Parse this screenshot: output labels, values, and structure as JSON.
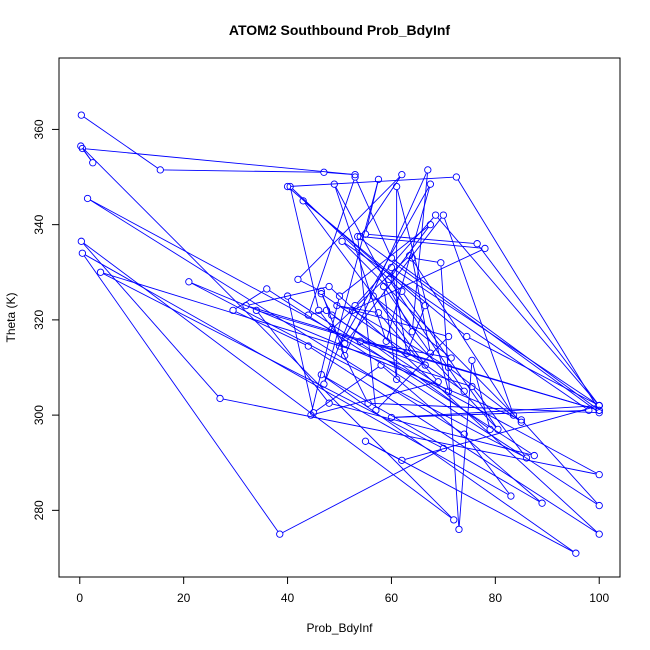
{
  "chart_data": {
    "type": "line",
    "title": "ATOM2 Southbound Prob_BdyInf",
    "xlabel": "Prob_BdyInf",
    "ylabel": "Theta (K)",
    "xlim": [
      -4,
      104
    ],
    "ylim": [
      266,
      375
    ],
    "xticks": [
      0,
      20,
      40,
      60,
      80,
      100
    ],
    "yticks": [
      280,
      300,
      320,
      340,
      360
    ],
    "grid": false,
    "legend": "none",
    "series_color": "#0000ff",
    "x": [
      0.3,
      15.5,
      47.0,
      53.0,
      0.5,
      2.5,
      0.2,
      72.0,
      0.3,
      27.0,
      100.0,
      1.5,
      74.0,
      83.0,
      0.5,
      38.5,
      70.0,
      4.0,
      75.5,
      86.0,
      21.0,
      85.0,
      100.0,
      36.0,
      29.5,
      44.0,
      100.0,
      48.0,
      32.0,
      100.0,
      34.0,
      48.0,
      87.5,
      40.0,
      45.0,
      58.0,
      89.0,
      46.5,
      95.5,
      55.0,
      62.0,
      100.0,
      60.0,
      98.0,
      50.5,
      85.0,
      71.0,
      52.5,
      78.0,
      54.0,
      62.0,
      42.0,
      46.5,
      51.0,
      67.0,
      64.0,
      49.0,
      59.0,
      67.5,
      50.0,
      55.5,
      100.0,
      53.5,
      57.0,
      71.0,
      49.5,
      57.5,
      69.0,
      44.5,
      50.0,
      67.5,
      59.5,
      74.0,
      46.5,
      48.5,
      71.0,
      61.0,
      61.0,
      58.5,
      67.5,
      64.0,
      69.5,
      73.0,
      75.5,
      79.0,
      47.5,
      44.0,
      53.0,
      60.0,
      100.0,
      72.5,
      40.0,
      66.5,
      63.0,
      60.0,
      100.0,
      76.5,
      55.0,
      57.5,
      47.0,
      53.0,
      68.5,
      100.0,
      74.5,
      43.0,
      66.5,
      54.0,
      71.5,
      56.5,
      80.5,
      62.0,
      40.5,
      46.0,
      51.0,
      70.0,
      83.5,
      63.5,
      48.5
    ],
    "y": [
      363.0,
      351.5,
      351.0,
      350.5,
      356.0,
      353.0,
      356.5,
      278.0,
      336.5,
      303.5,
      287.5,
      345.5,
      296.0,
      283.0,
      334.0,
      275.0,
      293.0,
      330.0,
      306.0,
      291.0,
      328.0,
      299.0,
      281.0,
      326.5,
      322.0,
      314.5,
      275.0,
      327.0,
      323.0,
      301.0,
      322.0,
      302.5,
      291.5,
      325.0,
      300.5,
      310.5,
      281.5,
      308.5,
      271.0,
      294.5,
      290.5,
      302.0,
      299.5,
      301.0,
      336.5,
      298.5,
      310.0,
      322.0,
      335.0,
      337.5,
      350.5,
      328.5,
      326.0,
      312.5,
      351.5,
      317.5,
      348.5,
      315.5,
      348.5,
      314.5,
      302.5,
      300.5,
      337.5,
      301.0,
      316.5,
      323.0,
      321.5,
      307.0,
      300.0,
      325.0,
      340.0,
      328.5,
      305.0,
      325.5,
      321.0,
      305.0,
      348.0,
      307.5,
      327.0,
      313.0,
      333.0,
      332.0,
      276.0,
      311.5,
      297.0,
      322.0,
      321.0,
      350.0,
      333.0,
      301.0,
      350.0,
      348.0,
      323.0,
      313.0,
      331.0,
      302.0,
      336.0,
      338.0,
      349.5,
      306.5,
      323.0,
      342.0,
      302.0,
      316.5,
      345.0,
      310.5,
      315.5,
      312.0,
      325.0,
      297.0,
      326.0,
      348.0,
      322.0,
      315.0,
      342.0,
      300.0,
      333.5,
      318.0
    ]
  }
}
